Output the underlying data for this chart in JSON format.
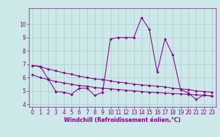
{
  "xlabel": "Windchill (Refroidissement éolien,°C)",
  "bg_color": "#cce8e8",
  "grid_color": "#aacccc",
  "line_color": "#880088",
  "x_hours": [
    0,
    1,
    2,
    3,
    4,
    5,
    6,
    7,
    8,
    9,
    10,
    11,
    12,
    13,
    14,
    15,
    16,
    17,
    18,
    19,
    20,
    21,
    22,
    23
  ],
  "series_main": [
    6.9,
    6.85,
    5.9,
    4.95,
    4.9,
    4.75,
    5.2,
    5.2,
    4.65,
    4.9,
    8.9,
    9.0,
    9.0,
    9.0,
    10.5,
    9.6,
    6.4,
    8.9,
    7.7,
    5.1,
    4.85,
    4.35,
    4.7,
    4.6
  ],
  "series_top": [
    6.9,
    6.8,
    6.65,
    6.5,
    6.35,
    6.25,
    6.1,
    6.0,
    5.9,
    5.85,
    5.75,
    5.65,
    5.6,
    5.5,
    5.45,
    5.4,
    5.35,
    5.3,
    5.2,
    5.15,
    5.1,
    5.0,
    4.95,
    4.9
  ],
  "series_mid1": [
    6.2,
    6.0,
    5.85,
    5.7,
    5.6,
    5.5,
    5.4,
    5.35,
    5.25,
    5.2,
    5.15,
    5.1,
    5.05,
    5.0,
    4.95,
    4.9,
    4.87,
    4.84,
    4.8,
    4.77,
    4.74,
    4.7,
    4.66,
    4.62
  ],
  "series_bot": [
    null,
    null,
    null,
    null,
    4.9,
    4.75,
    5.2,
    5.2,
    4.65,
    4.9,
    null,
    null,
    null,
    null,
    null,
    null,
    null,
    null,
    null,
    null,
    null,
    null,
    null,
    null
  ],
  "ylim": [
    3.8,
    11.2
  ],
  "yticks": [
    4,
    5,
    6,
    7,
    8,
    9,
    10
  ],
  "xticks": [
    0,
    1,
    2,
    3,
    4,
    5,
    6,
    7,
    8,
    9,
    10,
    11,
    12,
    13,
    14,
    15,
    16,
    17,
    18,
    19,
    20,
    21,
    22,
    23
  ],
  "tick_fontsize": 5.5,
  "xlabel_fontsize": 5.8
}
